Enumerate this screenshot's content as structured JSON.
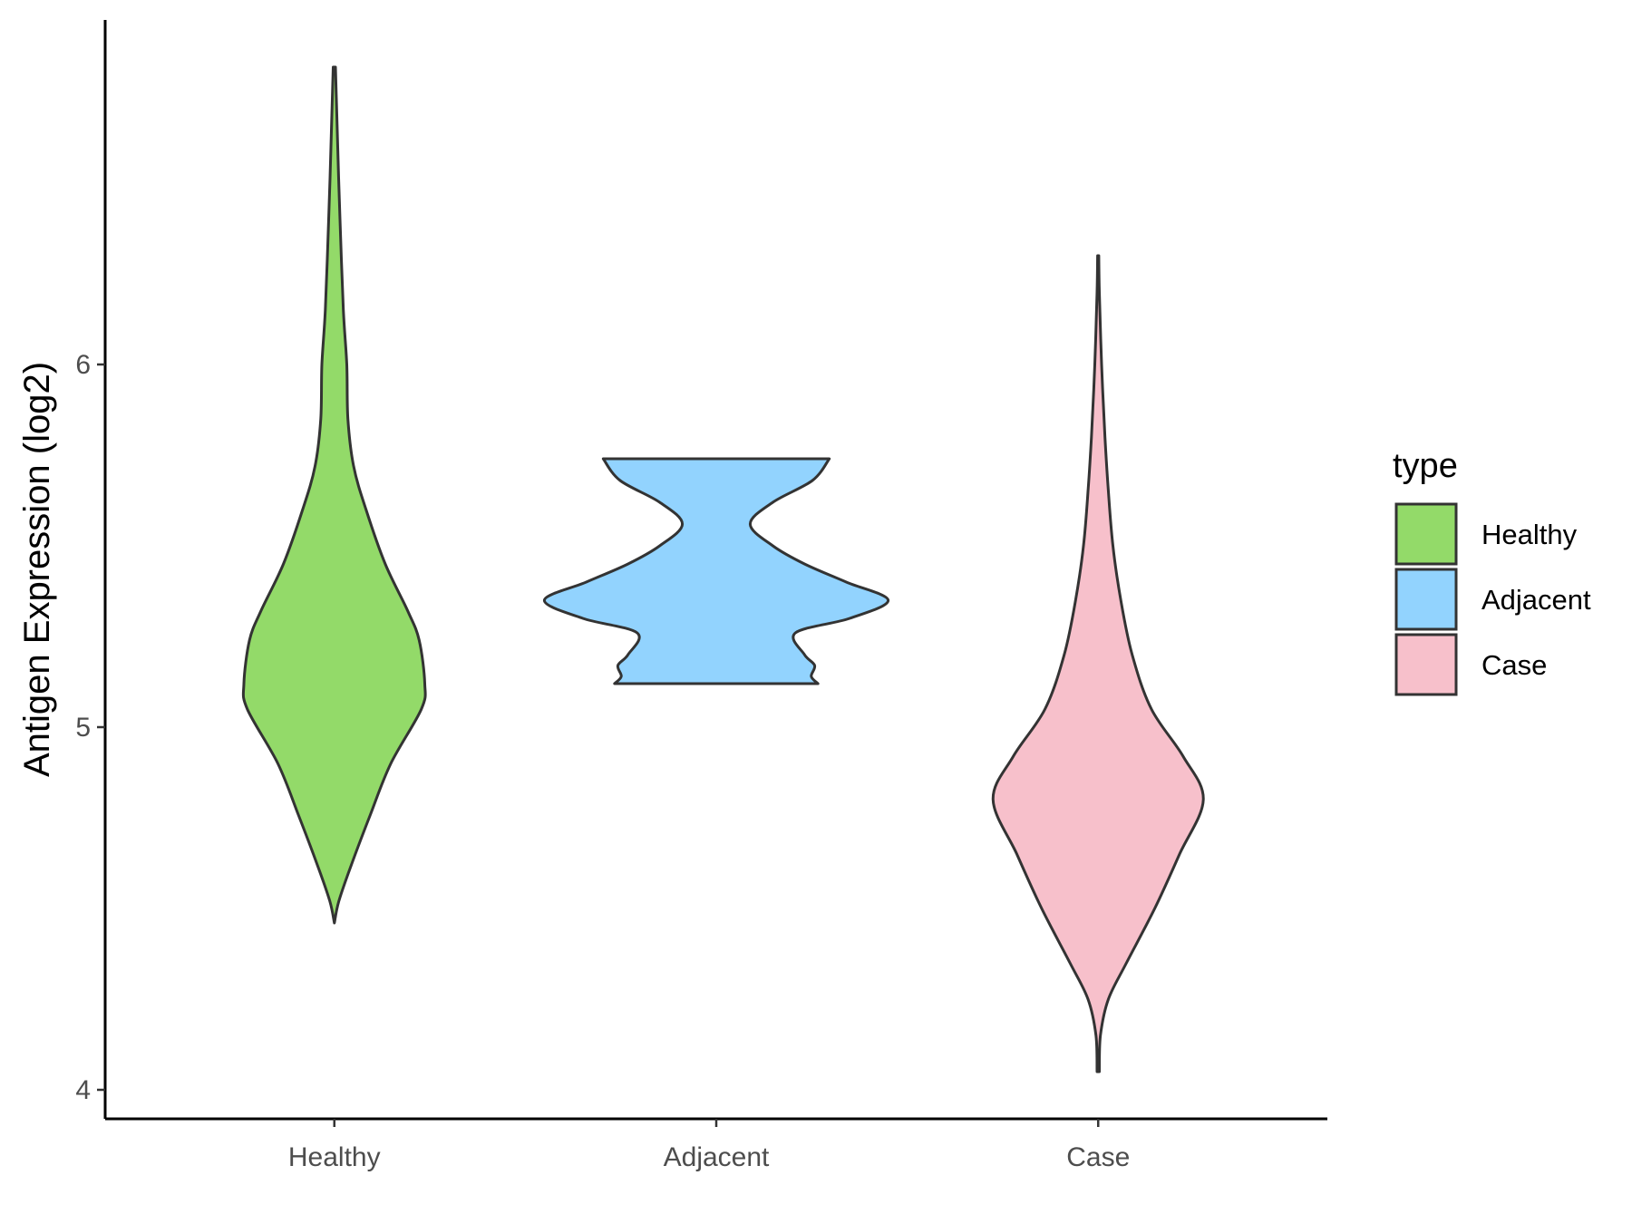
{
  "chart_data": {
    "type": "violin",
    "ylabel": "Antigen Expression (log2)",
    "xlabel": "",
    "ylim": [
      3.92,
      6.95
    ],
    "y_ticks": [
      4,
      5,
      6
    ],
    "y_tick_labels": [
      "4",
      "5",
      "6"
    ],
    "categories": [
      "Healthy",
      "Adjacent",
      "Case"
    ],
    "legend": {
      "title": "type",
      "placement": "right",
      "entries": [
        "Healthy",
        "Adjacent",
        "Case"
      ]
    },
    "grid": false,
    "colors": {
      "Healthy": "#93DA69",
      "Adjacent": "#92D3FE",
      "Case": "#F7C0CB",
      "outline": "#333333"
    },
    "series": [
      {
        "name": "Healthy",
        "min": 4.46,
        "max": 6.82,
        "density": [
          [
            4.46,
            0.0
          ],
          [
            4.52,
            0.04
          ],
          [
            4.62,
            0.15
          ],
          [
            4.76,
            0.32
          ],
          [
            4.9,
            0.5
          ],
          [
            5.05,
            0.77
          ],
          [
            5.12,
            0.8
          ],
          [
            5.24,
            0.75
          ],
          [
            5.32,
            0.65
          ],
          [
            5.45,
            0.45
          ],
          [
            5.6,
            0.28
          ],
          [
            5.72,
            0.17
          ],
          [
            5.85,
            0.12
          ],
          [
            6.0,
            0.11
          ],
          [
            6.15,
            0.08
          ],
          [
            6.4,
            0.05
          ],
          [
            6.6,
            0.03
          ],
          [
            6.82,
            0.01
          ]
        ]
      },
      {
        "name": "Adjacent",
        "min": 5.12,
        "max": 5.74,
        "density": [
          [
            5.12,
            0.9
          ],
          [
            5.14,
            0.84
          ],
          [
            5.17,
            0.87
          ],
          [
            5.2,
            0.78
          ],
          [
            5.26,
            0.7
          ],
          [
            5.3,
            1.18
          ],
          [
            5.35,
            1.52
          ],
          [
            5.4,
            1.15
          ],
          [
            5.45,
            0.78
          ],
          [
            5.5,
            0.5
          ],
          [
            5.56,
            0.3
          ],
          [
            5.62,
            0.5
          ],
          [
            5.68,
            0.85
          ],
          [
            5.74,
            1.0
          ]
        ]
      },
      {
        "name": "Case",
        "min": 4.05,
        "max": 6.3,
        "density": [
          [
            4.05,
            0.01
          ],
          [
            4.15,
            0.02
          ],
          [
            4.25,
            0.09
          ],
          [
            4.35,
            0.25
          ],
          [
            4.5,
            0.5
          ],
          [
            4.65,
            0.72
          ],
          [
            4.8,
            0.93
          ],
          [
            4.92,
            0.75
          ],
          [
            5.05,
            0.47
          ],
          [
            5.2,
            0.3
          ],
          [
            5.35,
            0.2
          ],
          [
            5.5,
            0.13
          ],
          [
            5.65,
            0.09
          ],
          [
            5.8,
            0.06
          ],
          [
            6.0,
            0.03
          ],
          [
            6.2,
            0.01
          ],
          [
            6.3,
            0.005
          ]
        ]
      }
    ]
  }
}
